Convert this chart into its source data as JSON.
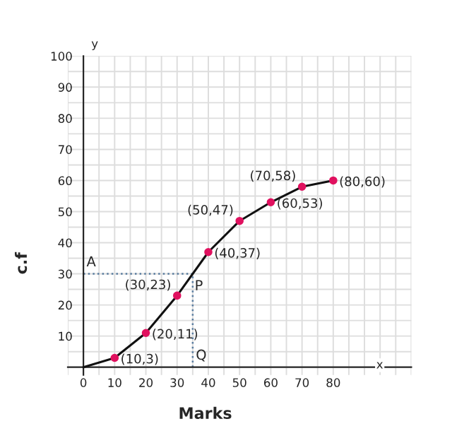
{
  "chart_data": {
    "type": "line",
    "xlabel": "Marks",
    "ylabel": "c.f",
    "xlim": [
      -5,
      105
    ],
    "ylim": [
      -2.5,
      100
    ],
    "xticks": [
      0,
      10,
      20,
      30,
      40,
      50,
      60,
      70,
      80
    ],
    "yticks": [
      {
        "value": 0,
        "label": null
      },
      10,
      20,
      30,
      40,
      50,
      60,
      70,
      80,
      90,
      100
    ],
    "grid": true,
    "series": [
      {
        "color": "#111111",
        "x": [
          0,
          10,
          20,
          30,
          40,
          50,
          60,
          70,
          80
        ],
        "values": [
          0,
          3,
          11,
          23,
          37,
          47,
          53,
          58,
          60
        ]
      },
      {
        "type": "scatter",
        "color": "#e0115f",
        "marker": "circle",
        "x": [
          10,
          20,
          30,
          40,
          50,
          60,
          70,
          80
        ],
        "values": [
          3,
          11,
          23,
          37,
          47,
          53,
          58,
          60
        ]
      }
    ],
    "ref_lines": [
      {
        "axis": "y",
        "value": 30,
        "label": "A",
        "color": "#5a7da0",
        "line_style": "dotted"
      },
      {
        "axis": "x",
        "value": 35,
        "label": "Q",
        "color": "#5a7da0",
        "line_style": "dotted"
      }
    ],
    "annotations": [
      {
        "text": "(10,3)",
        "x": 10,
        "y": 3
      },
      {
        "text": "(20,11)",
        "x": 20,
        "y": 11
      },
      {
        "text": "(30,23)",
        "x": 30,
        "y": 23
      },
      {
        "text": "(40,37)",
        "x": 40,
        "y": 37
      },
      {
        "text": "(50,47)",
        "x": 50,
        "y": 47
      },
      {
        "text": "(60,53)",
        "x": 60,
        "y": 53
      },
      {
        "text": "(70,58)",
        "x": 70,
        "y": 58
      },
      {
        "text": "(80,60)",
        "x": 80,
        "y": 60
      },
      {
        "text": "P",
        "x": 35,
        "y": 30
      },
      "x",
      "y"
    ]
  }
}
